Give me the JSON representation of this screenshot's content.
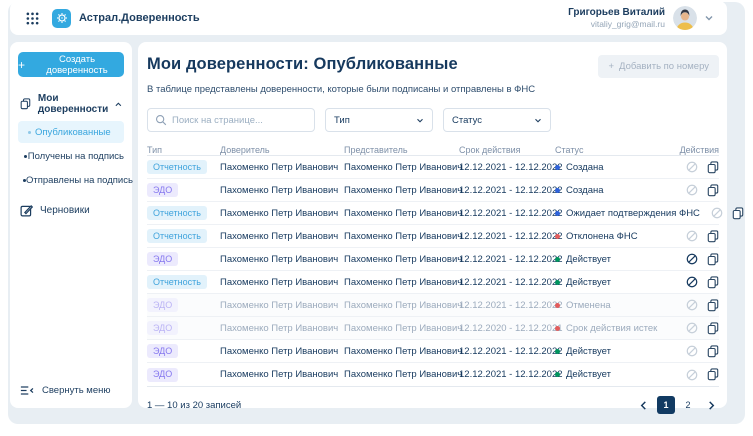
{
  "header": {
    "app_name": "Астрал.Доверенность",
    "user": {
      "name": "Григорьев Виталий",
      "email": "vitaliy_grig@mail.ru"
    }
  },
  "sidebar": {
    "create_button": "Создать доверенность",
    "menu": {
      "label": "Мои доверенности",
      "items": [
        {
          "label": "Опубликованные",
          "active": true
        },
        {
          "label": "Получены на подпись",
          "active": false
        },
        {
          "label": "Отправлены на подпись",
          "active": false
        }
      ]
    },
    "drafts_label": "Черновики",
    "collapse_label": "Свернуть меню"
  },
  "main": {
    "title": "Мои доверенности: Опубликованные",
    "subtitle": "В таблице представлены доверенности, которые были подписаны и отправлены в ФНС",
    "add_by_number_label": "Добавить по номеру",
    "filters": {
      "search_placeholder": "Поиск на странице...",
      "type_label": "Тип",
      "status_label": "Статус"
    },
    "table": {
      "columns": [
        "Тип",
        "Доверитель",
        "Представитель",
        "Срок действия",
        "Статус",
        "Действия"
      ],
      "rows": [
        {
          "type": "Отчетность",
          "type_color": "blue",
          "principal": "Пахоменко Петр Иванович",
          "representative": "Пахоменко Петр Иванович",
          "period": "12.12.2021 - 12.12.2022",
          "status": "Создана",
          "status_color": "blue",
          "muted": false,
          "revoke_enabled": false
        },
        {
          "type": "ЭДО",
          "type_color": "purple",
          "principal": "Пахоменко Петр Иванович",
          "representative": "Пахоменко Петр Иванович",
          "period": "12.12.2021 - 12.12.2022",
          "status": "Создана",
          "status_color": "blue",
          "muted": false,
          "revoke_enabled": false
        },
        {
          "type": "Отчетность",
          "type_color": "blue",
          "principal": "Пахоменко Петр Иванович",
          "representative": "Пахоменко Петр Иванович",
          "period": "12.12.2021 - 12.12.2022",
          "status": "Ожидает подтверждения ФНС",
          "status_color": "blue",
          "muted": false,
          "revoke_enabled": false
        },
        {
          "type": "Отчетность",
          "type_color": "blue",
          "principal": "Пахоменко Петр Иванович",
          "representative": "Пахоменко Петр Иванович",
          "period": "12.12.2021 - 12.12.2022",
          "status": "Отклонена ФНС",
          "status_color": "red",
          "muted": false,
          "revoke_enabled": false
        },
        {
          "type": "ЭДО",
          "type_color": "purple",
          "principal": "Пахоменко Петр Иванович",
          "representative": "Пахоменко Петр Иванович",
          "period": "12.12.2021 - 12.12.2022",
          "status": "Действует",
          "status_color": "green",
          "muted": false,
          "revoke_enabled": true
        },
        {
          "type": "Отчетность",
          "type_color": "blue",
          "principal": "Пахоменко Петр Иванович",
          "representative": "Пахоменко Петр Иванович",
          "period": "12.12.2021 - 12.12.2022",
          "status": "Действует",
          "status_color": "green",
          "muted": false,
          "revoke_enabled": true
        },
        {
          "type": "ЭДО",
          "type_color": "purple",
          "principal": "Пахоменко Петр Иванович",
          "representative": "Пахоменко Петр Иванович",
          "period": "12.12.2021 - 12.12.2022",
          "status": "Отменена",
          "status_color": "red",
          "muted": true,
          "revoke_enabled": false
        },
        {
          "type": "ЭДО",
          "type_color": "purple",
          "principal": "Пахоменко Петр Иванович",
          "representative": "Пахоменко Петр Иванович",
          "period": "12.12.2020 - 12.12.2021",
          "status": "Срок действия истек",
          "status_color": "red",
          "muted": true,
          "revoke_enabled": false
        },
        {
          "type": "ЭДО",
          "type_color": "purple",
          "principal": "Пахоменко Петр Иванович",
          "representative": "Пахоменко Петр Иванович",
          "period": "12.12.2021 - 12.12.2022",
          "status": "Действует",
          "status_color": "green",
          "muted": false,
          "revoke_enabled": false
        },
        {
          "type": "ЭДО",
          "type_color": "purple",
          "principal": "Пахоменко Петр Иванович",
          "representative": "Пахоменко Петр Иванович",
          "period": "12.12.2021 - 12.12.2022",
          "status": "Действует",
          "status_color": "green",
          "muted": false,
          "revoke_enabled": false
        }
      ]
    },
    "pagination": {
      "summary": "1 — 10 из 20 записей",
      "pages": [
        "1",
        "2"
      ],
      "active_page": "1"
    }
  },
  "colors": {
    "accent": "#33a9e0",
    "active_page_bg": "#113a62",
    "status": {
      "blue": "#2e62d9",
      "green": "#00945e",
      "red": "#e25c5c"
    },
    "badge": {
      "blue_bg": "#e2f2fb",
      "blue_text": "#3fa3dc",
      "purple_bg": "#eceafd",
      "purple_text": "#8678ef"
    }
  }
}
